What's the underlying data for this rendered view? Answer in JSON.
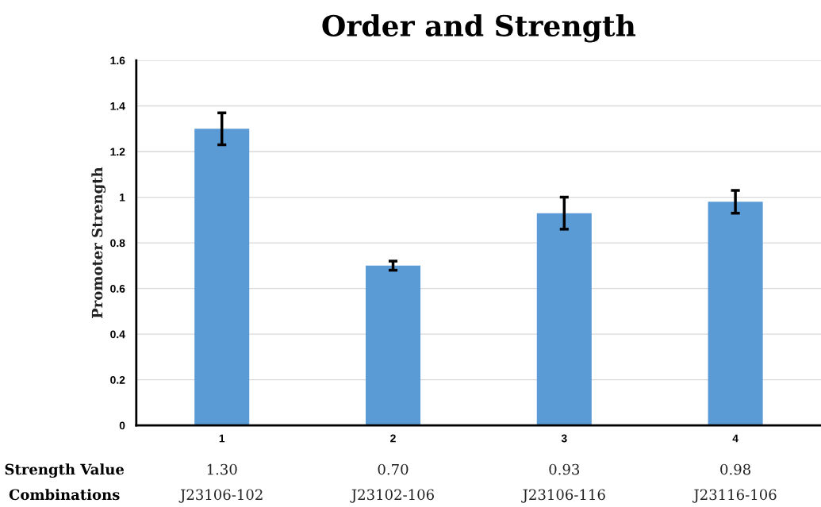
{
  "chart_data": {
    "type": "bar",
    "title": "Order and Strength",
    "ylabel": "Promoter Strength",
    "categories": [
      "1",
      "2",
      "3",
      "4"
    ],
    "values": [
      1.3,
      0.7,
      0.93,
      0.98
    ],
    "errors": [
      0.07,
      0.02,
      0.07,
      0.05
    ],
    "value_labels": [
      "1.30",
      "0.70",
      "0.93",
      "0.98"
    ],
    "color": "#5b9bd5",
    "ylim": [
      0,
      1.6
    ],
    "yticks": [
      {
        "value": 0,
        "label": "0"
      },
      0.2,
      0.4,
      0.6,
      0.8,
      {
        "value": 1,
        "label": "1"
      },
      1.2,
      1.4,
      1.6
    ],
    "grid": "y",
    "annotations": [
      "Strength Value",
      "Combinations",
      "J23106-102",
      "J23102-106",
      "J23106-116",
      "J23116-106"
    ]
  }
}
